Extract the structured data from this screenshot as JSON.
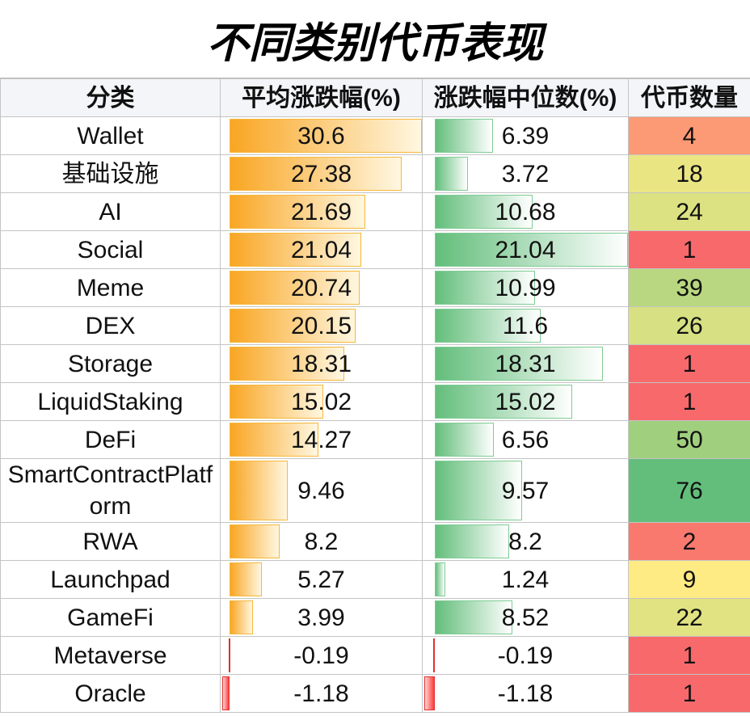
{
  "header": {
    "title": "不同类别代币表现"
  },
  "table": {
    "columns": [
      "分类",
      "平均涨跌幅(%)",
      "涨跌幅中位数(%)",
      "代币数量"
    ],
    "rows": [
      [
        "Wallet",
        30.6,
        6.39,
        4
      ],
      [
        "基础设施",
        27.38,
        3.72,
        18
      ],
      [
        "AI",
        21.69,
        10.68,
        24
      ],
      [
        "Social",
        21.04,
        21.04,
        1
      ],
      [
        "Meme",
        20.74,
        10.99,
        39
      ],
      [
        "DEX",
        20.15,
        11.6,
        26
      ],
      [
        "Storage",
        18.31,
        18.31,
        1
      ],
      [
        "LiquidStaking",
        15.02,
        15.02,
        1
      ],
      [
        "DeFi",
        14.27,
        6.56,
        50
      ],
      [
        "SmartContractPlatform",
        9.46,
        9.57,
        76
      ],
      [
        "RWA",
        8.2,
        8.2,
        2
      ],
      [
        "Launchpad",
        5.27,
        1.24,
        9
      ],
      [
        "GameFi",
        3.99,
        8.52,
        22
      ],
      [
        "Metaverse",
        -0.19,
        -0.19,
        1
      ],
      [
        "Oracle",
        -1.18,
        -1.18,
        1
      ]
    ]
  }
}
